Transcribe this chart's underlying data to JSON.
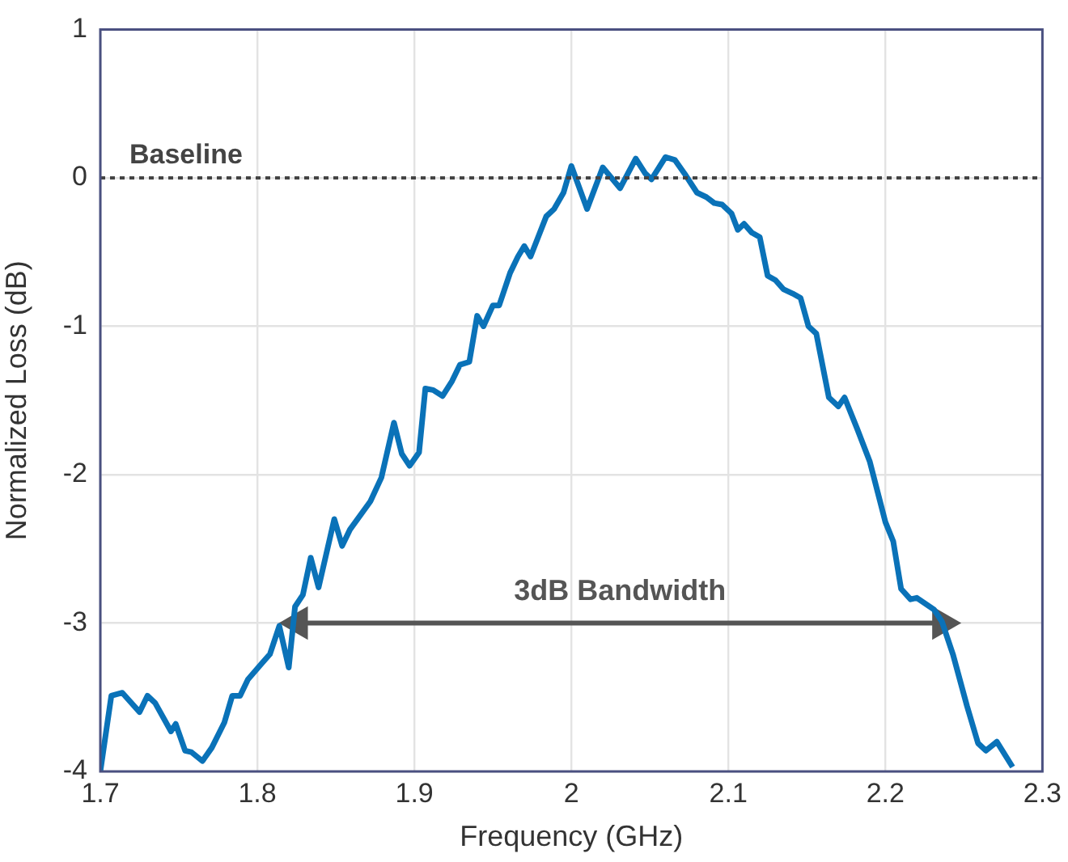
{
  "chart_data": {
    "type": "line",
    "xlabel": "Frequency (GHz)",
    "ylabel": "Normalized Loss (dB)",
    "xlim": [
      1.7,
      2.3
    ],
    "xticks": [
      1.7,
      1.8,
      1.9,
      2,
      2.1,
      2.2,
      2.3
    ],
    "ylim": [
      -4,
      1
    ],
    "yticks": [
      -4,
      -3,
      -2,
      -1,
      0,
      1
    ],
    "grid": true,
    "legend": false,
    "marker": "none",
    "line_style": "solid",
    "series": [
      {
        "color": "#0a72b8",
        "x": [
          1.7,
          1.707,
          1.714,
          1.725,
          1.73,
          1.735,
          1.745,
          1.748,
          1.754,
          1.758,
          1.765,
          1.771,
          1.779,
          1.784,
          1.789,
          1.794,
          1.803,
          1.808,
          1.814,
          1.82,
          1.824,
          1.829,
          1.834,
          1.839,
          1.849,
          1.854,
          1.859,
          1.872,
          1.879,
          1.887,
          1.892,
          1.897,
          1.903,
          1.907,
          1.912,
          1.918,
          1.924,
          1.929,
          1.935,
          1.94,
          1.944,
          1.95,
          1.954,
          1.961,
          1.966,
          1.97,
          1.974,
          1.984,
          1.989,
          1.995,
          2.0,
          2.01,
          2.02,
          2.031,
          2.041,
          2.047,
          2.051,
          2.06,
          2.066,
          2.072,
          2.08,
          2.086,
          2.091,
          2.096,
          2.102,
          2.106,
          2.11,
          2.115,
          2.12,
          2.125,
          2.13,
          2.135,
          2.141,
          2.146,
          2.151,
          2.156,
          2.164,
          2.17,
          2.174,
          2.182,
          2.19,
          2.2,
          2.205,
          2.21,
          2.216,
          2.22,
          2.231,
          2.236,
          2.243,
          2.252,
          2.259,
          2.264,
          2.271,
          2.281
        ],
        "values": [
          -4.0,
          -3.49,
          -3.47,
          -3.6,
          -3.49,
          -3.54,
          -3.73,
          -3.68,
          -3.86,
          -3.87,
          -3.93,
          -3.84,
          -3.67,
          -3.49,
          -3.49,
          -3.38,
          -3.27,
          -3.21,
          -3.02,
          -3.3,
          -2.89,
          -2.81,
          -2.56,
          -2.76,
          -2.3,
          -2.48,
          -2.37,
          -2.18,
          -2.02,
          -1.65,
          -1.86,
          -1.94,
          -1.85,
          -1.42,
          -1.43,
          -1.47,
          -1.37,
          -1.26,
          -1.24,
          -0.93,
          -1.0,
          -0.86,
          -0.86,
          -0.64,
          -0.53,
          -0.46,
          -0.53,
          -0.26,
          -0.21,
          -0.1,
          0.08,
          -0.21,
          0.07,
          -0.07,
          0.13,
          0.03,
          -0.01,
          0.14,
          0.12,
          0.03,
          -0.1,
          -0.13,
          -0.17,
          -0.18,
          -0.24,
          -0.35,
          -0.31,
          -0.37,
          -0.4,
          -0.66,
          -0.69,
          -0.75,
          -0.78,
          -0.81,
          -1.0,
          -1.05,
          -1.48,
          -1.54,
          -1.48,
          -1.69,
          -1.91,
          -2.32,
          -2.45,
          -2.77,
          -2.84,
          -2.83,
          -2.91,
          -2.99,
          -3.21,
          -3.56,
          -3.81,
          -3.86,
          -3.8,
          -3.97
        ]
      },
      {
        "type": "line",
        "color": "#555555",
        "marker": "triangle",
        "x": [
          1.826,
          2.236
        ],
        "values": [
          -3,
          -3
        ]
      }
    ],
    "ref_lines": [
      {
        "axis": "y",
        "value": 0,
        "label": "Baseline",
        "color": "#444444",
        "line_style": "dotted"
      }
    ],
    "annotations": [
      {
        "text": "3dB Bandwidth",
        "x": 2.031,
        "y": -3
      }
    ]
  }
}
